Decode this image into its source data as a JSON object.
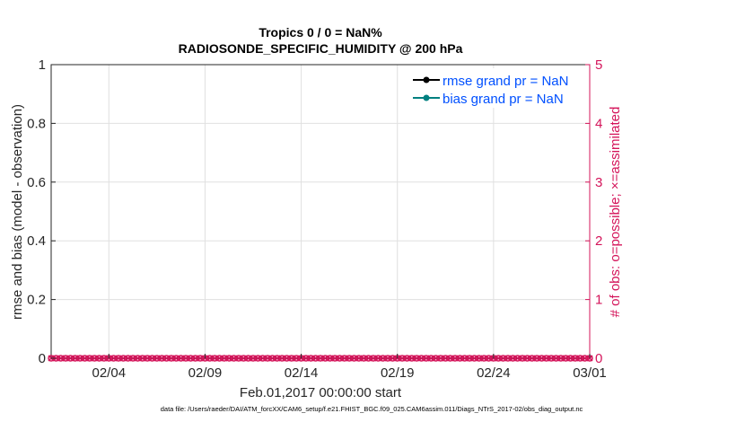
{
  "chart_data": {
    "type": "line",
    "title_line1": "Tropics 0 / 0 = NaN%",
    "title_line2": "RADIOSONDE_SPECIFIC_HUMIDITY @ 200 hPa",
    "xlabel": "Feb.01,2017 00:00:00 start",
    "ylabel_left": "rmse and bias (model - observation)",
    "ylabel_right": "# of obs: o=possible; ×=assimilated",
    "xlim": [
      "2017-02-01",
      "2017-03-01"
    ],
    "x_ticks": [
      {
        "date": "2017-02-04",
        "label": "02/04"
      },
      {
        "date": "2017-02-09",
        "label": "02/09"
      },
      {
        "date": "2017-02-14",
        "label": "02/14"
      },
      {
        "date": "2017-02-19",
        "label": "02/19"
      },
      {
        "date": "2017-02-24",
        "label": "02/24"
      },
      {
        "date": "2017-03-01",
        "label": "03/01"
      }
    ],
    "ylim_left": [
      0,
      1
    ],
    "y_ticks_left": [
      "0",
      "0.2",
      "0.4",
      "0.6",
      "0.8",
      "1"
    ],
    "ylim_right": [
      0,
      5
    ],
    "y_ticks_right": [
      "0",
      "1",
      "2",
      "3",
      "4",
      "5"
    ],
    "grid": true,
    "legend_placement": "top-right",
    "series": [
      {
        "name": "rmse grand pr = NaN",
        "values": "NaN",
        "color": "#000000"
      },
      {
        "name": "bias grand pr = NaN",
        "values": "NaN",
        "color": "#008080"
      }
    ],
    "obs_counts": {
      "start": "2017-02-01 00:00",
      "step_hours": 6,
      "possible": [
        0,
        0,
        0,
        0,
        0,
        0,
        0,
        0,
        0,
        0,
        0,
        0,
        0,
        0,
        0,
        0,
        0,
        0,
        0,
        0,
        0,
        0,
        0,
        0,
        0,
        0,
        0,
        0,
        0,
        0,
        0,
        0,
        0,
        0,
        0,
        0,
        0,
        0,
        0,
        0,
        0,
        0,
        0,
        0,
        0,
        0,
        0,
        0,
        0,
        0,
        0,
        0,
        0,
        0,
        0,
        0,
        0,
        0,
        0,
        0,
        0,
        0,
        0,
        0,
        0,
        0,
        0,
        0,
        0,
        0,
        0,
        0,
        0,
        0,
        0,
        0,
        0,
        0,
        0,
        0,
        0,
        0,
        0,
        0,
        0,
        0,
        0,
        0,
        0,
        0,
        0,
        0,
        0,
        0,
        0,
        0,
        0,
        0,
        0,
        0,
        0,
        0,
        0,
        0,
        0,
        0,
        0,
        0,
        0,
        0,
        0,
        0,
        0
      ],
      "assimilated": [
        0,
        0,
        0,
        0,
        0,
        0,
        0,
        0,
        0,
        0,
        0,
        0,
        0,
        0,
        0,
        0,
        0,
        0,
        0,
        0,
        0,
        0,
        0,
        0,
        0,
        0,
        0,
        0,
        0,
        0,
        0,
        0,
        0,
        0,
        0,
        0,
        0,
        0,
        0,
        0,
        0,
        0,
        0,
        0,
        0,
        0,
        0,
        0,
        0,
        0,
        0,
        0,
        0,
        0,
        0,
        0,
        0,
        0,
        0,
        0,
        0,
        0,
        0,
        0,
        0,
        0,
        0,
        0,
        0,
        0,
        0,
        0,
        0,
        0,
        0,
        0,
        0,
        0,
        0,
        0,
        0,
        0,
        0,
        0,
        0,
        0,
        0,
        0,
        0,
        0,
        0,
        0,
        0,
        0,
        0,
        0,
        0,
        0,
        0,
        0,
        0,
        0,
        0,
        0,
        0,
        0,
        0,
        0,
        0,
        0,
        0,
        0,
        0
      ],
      "color": "#D4145A"
    },
    "legend_text_color": "#0050FF",
    "footer": "data file: /Users/raeder/DAI/ATM_forcXX/CAM6_setup/f.e21.FHIST_BGC.f09_025.CAM6assim.011/Diags_NTrS_2017-02/obs_diag_output.nc"
  }
}
